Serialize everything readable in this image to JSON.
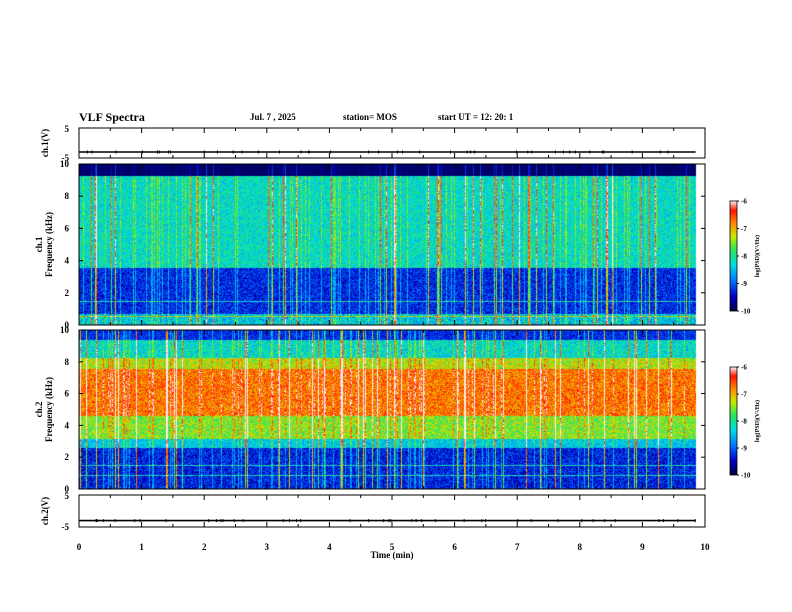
{
  "header": {
    "title": "VLF Spectra",
    "date": "Jul. 7 , 2025",
    "station": "station= MOS",
    "start": "start UT = 12: 20: 1"
  },
  "chart_data": [
    {
      "type": "line",
      "panel": "ch1-voltage",
      "ylabel": "ch.1(V)",
      "ylim": [
        -5,
        5
      ],
      "yticks": [
        "5",
        "-5"
      ],
      "xlim": [
        0,
        10
      ],
      "baseline": -3
    },
    {
      "type": "heatmap",
      "panel": "ch1-spectrogram",
      "ylabel": "ch.1 Frequency (kHz)",
      "ylim": [
        0,
        10
      ],
      "yticks": [
        "0",
        "2",
        "4",
        "6",
        "8",
        "10"
      ],
      "xlim": [
        0,
        10
      ],
      "data_end_min": 9.85,
      "colorbar": {
        "label": "log(PSD)(V²/Hz)",
        "range": [
          -10,
          -6
        ],
        "ticks": [
          "-6",
          "-7",
          "-8",
          "-9",
          "-10"
        ]
      }
    },
    {
      "type": "heatmap",
      "panel": "ch2-spectrogram",
      "ylabel": "ch.2 Frequency (kHz)",
      "ylim": [
        0,
        10
      ],
      "yticks": [
        "0",
        "2",
        "4",
        "6",
        "8",
        "10"
      ],
      "xlim": [
        0,
        10
      ],
      "data_end_min": 9.85,
      "colorbar": {
        "label": "log(PSD)(V²/Hz)",
        "range": [
          -10,
          -6
        ],
        "ticks": [
          "-6",
          "-7",
          "-8",
          "-9",
          "-10"
        ]
      }
    },
    {
      "type": "line",
      "panel": "ch2-voltage",
      "ylabel": "ch.2(V)",
      "ylim": [
        -5,
        5
      ],
      "yticks": [
        "5",
        "-5"
      ],
      "xlim": [
        0,
        10
      ],
      "baseline": -3
    }
  ],
  "xaxis": {
    "label": "Time (min)",
    "ticks": [
      "0",
      "1",
      "2",
      "3",
      "4",
      "5",
      "6",
      "7",
      "8",
      "9",
      "10"
    ]
  },
  "colors": {
    "frame": "#000000",
    "background": "#ffffff"
  }
}
